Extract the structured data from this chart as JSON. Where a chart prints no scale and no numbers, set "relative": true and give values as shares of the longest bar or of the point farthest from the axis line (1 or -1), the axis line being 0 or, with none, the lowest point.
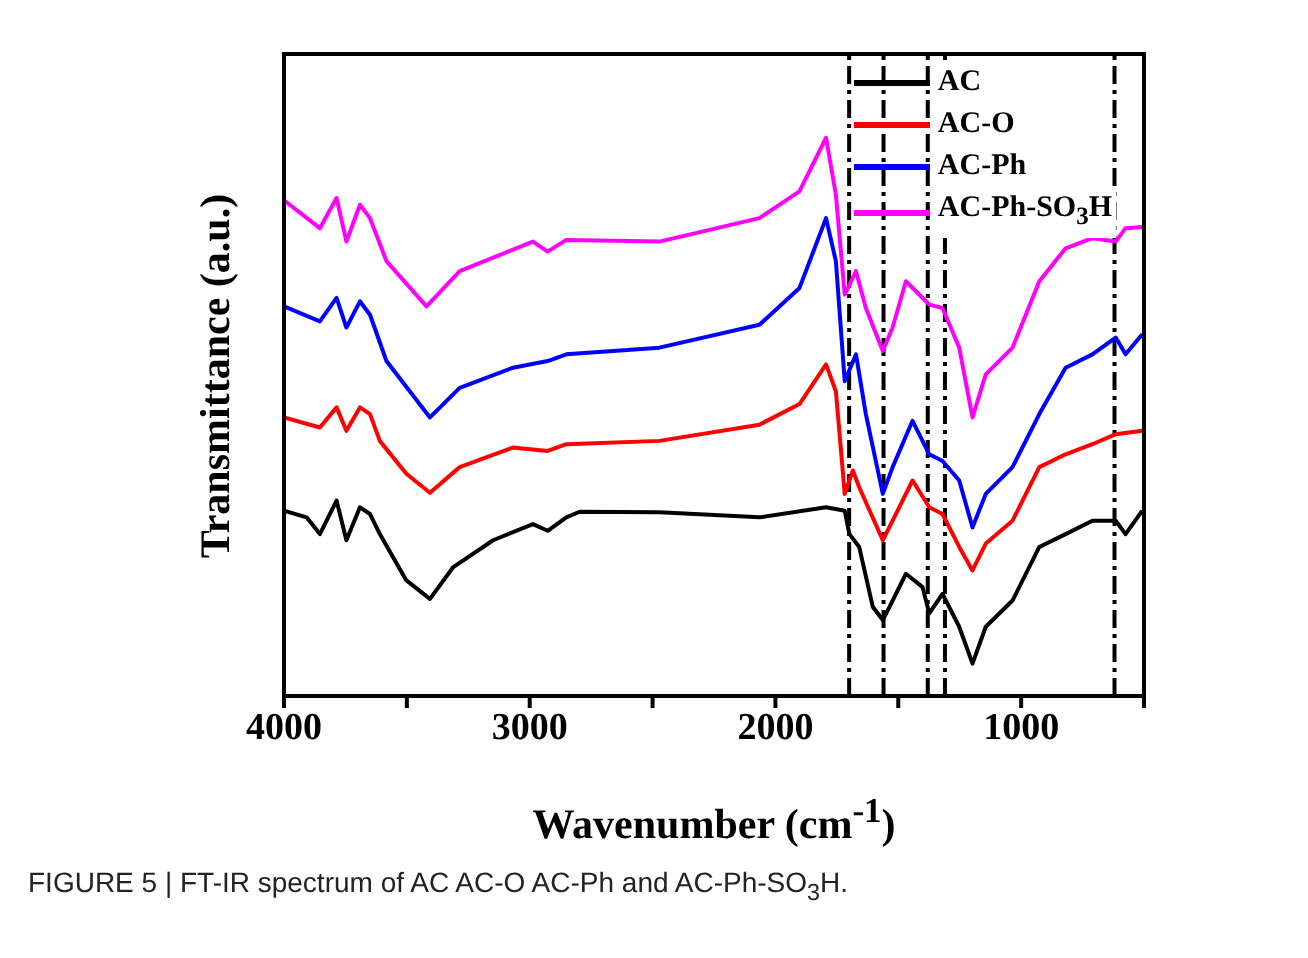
{
  "chart_data": {
    "type": "line",
    "xlabel": "Wavenumber (cm$^{-1}$)",
    "ylabel": "Transmittance (a.u.)",
    "annotations": [
      "FIGURE 5 | FT-IR spectrum of AC AC-O AC-Ph and AC-Ph-SO$_{3}$H."
    ],
    "relative": true,
    "legend": "top right",
    "xlim": [
      4000,
      500
    ],
    "xticks": [
      4000,
      {
        "value": 3500,
        "label": null
      },
      3000,
      {
        "value": 2500,
        "label": null
      },
      2000,
      {
        "value": 1500,
        "label": null
      },
      1000,
      {
        "value": 500,
        "label": null
      }
    ],
    "ref_lines": [
      {
        "axis": "x",
        "value": 1700,
        "color": "#000000",
        "line_style": "dashed"
      },
      {
        "axis": "x",
        "value": 1560,
        "color": "#000000",
        "line_style": "dashed"
      },
      {
        "axis": "x",
        "value": 1380,
        "color": "#000000",
        "line_style": "dashed"
      },
      {
        "axis": "x",
        "value": 1310,
        "color": "#000000",
        "line_style": "dashed"
      },
      {
        "axis": "x",
        "value": 620,
        "color": "#000000",
        "line_style": "dashed"
      }
    ],
    "series": [
      {
        "name": "AC",
        "color": "#000000",
        "x": [
          4000,
          3908,
          3854,
          3786,
          3746,
          3691,
          3650,
          3610,
          3502,
          3406,
          3311,
          3149,
          2987,
          2927,
          2851,
          2797,
          2472,
          2065,
          1794,
          1718,
          1699,
          1659,
          1604,
          1563,
          1523,
          1469,
          1401,
          1374,
          1320,
          1252,
          1198,
          1144,
          1035,
          926,
          819,
          710,
          615,
          575,
          507
        ],
        "values": [
          0.332,
          0.32,
          0.29,
          0.35,
          0.279,
          0.338,
          0.326,
          0.29,
          0.207,
          0.174,
          0.231,
          0.279,
          0.308,
          0.296,
          0.32,
          0.33,
          0.329,
          0.32,
          0.338,
          0.332,
          0.29,
          0.267,
          0.16,
          0.136,
          0.171,
          0.219,
          0.195,
          0.148,
          0.183,
          0.124,
          0.058,
          0.124,
          0.171,
          0.267,
          0.29,
          0.314,
          0.314,
          0.29,
          0.332
        ]
      },
      {
        "name": "AC-O",
        "color": "#ff0000",
        "x": [
          4000,
          3854,
          3786,
          3746,
          3691,
          3650,
          3610,
          3502,
          3406,
          3285,
          3068,
          2927,
          2851,
          2472,
          2065,
          1902,
          1794,
          1754,
          1718,
          1685,
          1659,
          1563,
          1523,
          1442,
          1374,
          1320,
          1252,
          1198,
          1144,
          1035,
          926,
          819,
          710,
          615,
          507
        ],
        "values": [
          0.499,
          0.481,
          0.517,
          0.475,
          0.517,
          0.505,
          0.457,
          0.398,
          0.364,
          0.41,
          0.445,
          0.439,
          0.451,
          0.457,
          0.486,
          0.523,
          0.594,
          0.546,
          0.362,
          0.404,
          0.374,
          0.279,
          0.314,
          0.386,
          0.338,
          0.326,
          0.267,
          0.225,
          0.273,
          0.314,
          0.41,
          0.433,
          0.451,
          0.469,
          0.475
        ]
      },
      {
        "name": "AC-Ph",
        "color": "#0000ff",
        "x": [
          4000,
          3854,
          3786,
          3746,
          3691,
          3650,
          3583,
          3406,
          3285,
          3068,
          2927,
          2851,
          2472,
          2065,
          1902,
          1794,
          1754,
          1718,
          1672,
          1632,
          1563,
          1523,
          1442,
          1374,
          1320,
          1252,
          1198,
          1144,
          1035,
          926,
          819,
          710,
          615,
          575,
          507
        ],
        "values": [
          0.698,
          0.671,
          0.713,
          0.66,
          0.707,
          0.683,
          0.6,
          0.499,
          0.552,
          0.588,
          0.6,
          0.612,
          0.624,
          0.665,
          0.731,
          0.856,
          0.779,
          0.564,
          0.612,
          0.505,
          0.362,
          0.41,
          0.493,
          0.433,
          0.421,
          0.386,
          0.302,
          0.362,
          0.41,
          0.505,
          0.588,
          0.612,
          0.642,
          0.612,
          0.648
        ]
      },
      {
        "name": "AC-Ph-SO$_{3}$H",
        "color": "#ff00ff",
        "x": [
          4000,
          3854,
          3786,
          3746,
          3691,
          3650,
          3583,
          3420,
          3285,
          2987,
          2927,
          2851,
          2472,
          2065,
          1902,
          1794,
          1754,
          1718,
          1672,
          1632,
          1563,
          1523,
          1469,
          1428,
          1374,
          1320,
          1252,
          1198,
          1144,
          1035,
          926,
          819,
          710,
          615,
          575,
          507
        ],
        "values": [
          0.888,
          0.838,
          0.892,
          0.814,
          0.88,
          0.856,
          0.779,
          0.698,
          0.761,
          0.814,
          0.796,
          0.817,
          0.814,
          0.856,
          0.904,
          1,
          0.898,
          0.719,
          0.761,
          0.695,
          0.618,
          0.66,
          0.743,
          0.725,
          0.701,
          0.695,
          0.624,
          0.499,
          0.576,
          0.624,
          0.743,
          0.802,
          0.82,
          0.814,
          0.838,
          0.84
        ]
      }
    ]
  }
}
